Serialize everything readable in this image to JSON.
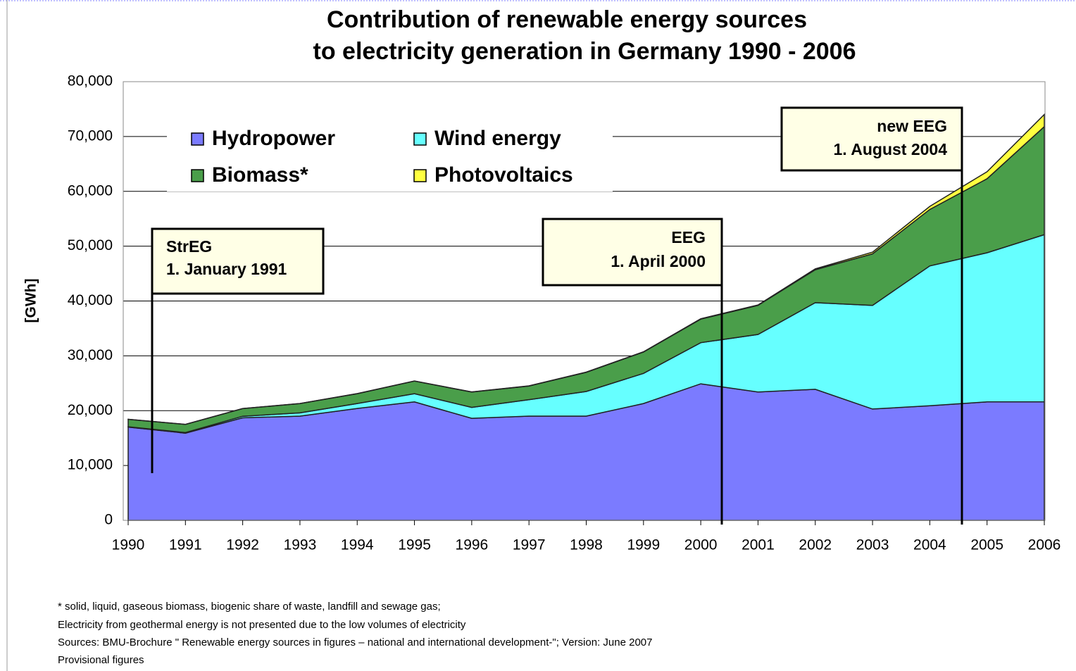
{
  "chart_data": {
    "type": "stacked_area",
    "title": [
      "Contribution of renewable energy sources",
      "to electricity generation in Germany 1990 - 2006"
    ],
    "y_label": "[GWh]",
    "categories": [
      "1990",
      "1991",
      "1992",
      "1993",
      "1994",
      "1995",
      "1996",
      "1997",
      "1998",
      "1999",
      "2000",
      "2001",
      "2002",
      "2003",
      "2004",
      "2005",
      "2006"
    ],
    "series": [
      {
        "name": "Hydropower",
        "color": "#7b7bff",
        "values": [
          17000,
          15900,
          18700,
          19000,
          20400,
          21600,
          18600,
          19000,
          19000,
          21300,
          24900,
          23400,
          23900,
          20300,
          20900,
          21600,
          21600
        ]
      },
      {
        "name": "Wind energy",
        "color": "#66ffff",
        "values": [
          70,
          100,
          280,
          600,
          900,
          1500,
          2000,
          3000,
          4500,
          5500,
          7500,
          10500,
          15800,
          18900,
          25500,
          27200,
          30500
        ]
      },
      {
        "name": "Biomass*",
        "color": "#4a9e4a",
        "values": [
          1350,
          1500,
          1400,
          1700,
          1800,
          2300,
          2800,
          2500,
          3500,
          3900,
          4300,
          5300,
          6000,
          9400,
          10300,
          13500,
          19700
        ]
      },
      {
        "name": "Photovoltaics",
        "color": "#ffff40",
        "values": [
          1,
          2,
          3,
          6,
          8,
          11,
          16,
          26,
          32,
          42,
          64,
          76,
          162,
          313,
          556,
          1282,
          2220
        ]
      }
    ],
    "ylim": [
      0,
      80000
    ],
    "yticks": [
      0,
      {
        "value": 10000,
        "label": "10,000"
      },
      {
        "value": 20000,
        "label": "20,000"
      },
      {
        "value": 30000,
        "label": "30,000"
      },
      {
        "value": 40000,
        "label": "40,000"
      },
      {
        "value": 50000,
        "label": "50,000"
      },
      {
        "value": 60000,
        "label": "60,000"
      },
      {
        "value": 70000,
        "label": "70,000"
      },
      {
        "value": 80000,
        "label": "80,000"
      }
    ],
    "grid": true,
    "annotations": [
      [
        "StrEG",
        "1. January 1991"
      ],
      [
        "EEG",
        "1. April 2000"
      ],
      [
        "new EEG",
        "1. August 2004"
      ]
    ],
    "notes": [
      "* solid, liquid, gaseous biomass, biogenic share of waste, landfill and sewage gas;",
      "Electricity from geothermal energy is not presented due to the low volumes of electricity",
      "Sources: BMU-Brochure \" Renewable energy sources in figures – national and international development-\"; Version: June 2007",
      "Provisional figures"
    ]
  }
}
